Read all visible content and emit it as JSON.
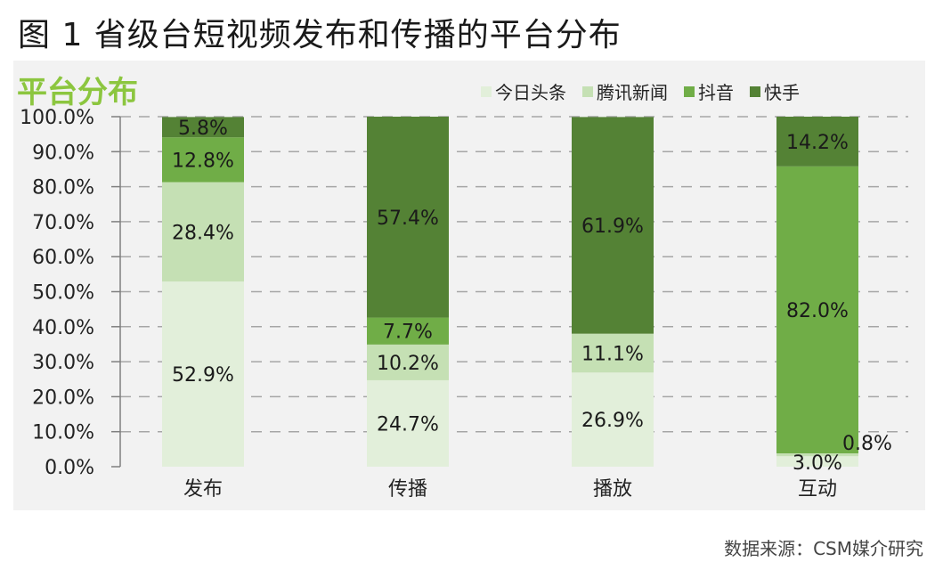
{
  "figure_title": "图 1  省级台短视频发布和传播的平台分布",
  "source_note": "数据来源：CSM媒介研究",
  "chart_data": {
    "type": "bar",
    "stacked": true,
    "title": "平台分布",
    "categories": [
      "发布",
      "传播",
      "播放",
      "互动"
    ],
    "yticks": [
      "0.0%",
      "10.0%",
      "20.0%",
      "30.0%",
      "40.0%",
      "50.0%",
      "60.0%",
      "70.0%",
      "80.0%",
      "90.0%",
      "100.0%"
    ],
    "ylim": [
      0,
      100
    ],
    "grid": true,
    "legend_position": "top-right",
    "series": [
      {
        "name": "今日头条",
        "color": "#e2efda",
        "values": [
          52.9,
          24.7,
          26.9,
          3.0
        ],
        "labels": [
          "52.9%",
          "24.7%",
          "26.9%",
          "3.0%"
        ]
      },
      {
        "name": "腾讯新闻",
        "color": "#c5e0b4",
        "values": [
          28.4,
          10.2,
          11.1,
          0.8
        ],
        "labels": [
          "28.4%",
          "10.2%",
          "11.1%",
          "0.8%"
        ]
      },
      {
        "name": "抖音",
        "color": "#70ad47",
        "values": [
          12.8,
          7.7,
          0.0,
          82.0
        ],
        "labels": [
          "12.8%",
          "7.7%",
          "",
          "82.0%"
        ]
      },
      {
        "name": "快手",
        "color": "#548235",
        "values": [
          5.8,
          57.4,
          61.9,
          14.2
        ],
        "labels": [
          "5.8%",
          "57.4%",
          "61.9%",
          "14.2%"
        ]
      }
    ]
  }
}
